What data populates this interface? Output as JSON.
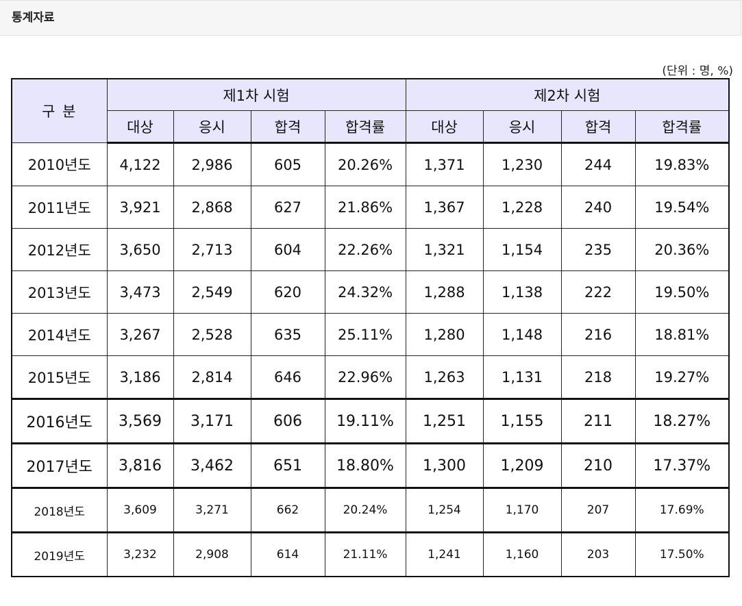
{
  "header": {
    "title": "통계자료"
  },
  "unit_note": "(단위 : 명, %)",
  "table": {
    "corner_label": "구 분",
    "groups": [
      "제1차 시험",
      "제2차 시험"
    ],
    "subheaders": [
      "대상",
      "응시",
      "합격",
      "합격률",
      "대상",
      "응시",
      "합격",
      "합격률"
    ],
    "rows": [
      [
        "2010년도",
        "4,122",
        "2,986",
        "605",
        "20.26%",
        "1,371",
        "1,230",
        "244",
        "19.83%"
      ],
      [
        "2011년도",
        "3,921",
        "2,868",
        "627",
        "21.86%",
        "1,367",
        "1,228",
        "240",
        "19.54%"
      ],
      [
        "2012년도",
        "3,650",
        "2,713",
        "604",
        "22.26%",
        "1,321",
        "1,154",
        "235",
        "20.36%"
      ],
      [
        "2013년도",
        "3,473",
        "2,549",
        "620",
        "24.32%",
        "1,288",
        "1,138",
        "222",
        "19.50%"
      ],
      [
        "2014년도",
        "3,267",
        "2,528",
        "635",
        "25.11%",
        "1,280",
        "1,148",
        "216",
        "18.81%"
      ],
      [
        "2015년도",
        "3,186",
        "2,814",
        "646",
        "22.96%",
        "1,263",
        "1,131",
        "218",
        "19.27%"
      ],
      [
        "2016년도",
        "3,569",
        "3,171",
        "606",
        "19.11%",
        "1,251",
        "1,155",
        "211",
        "18.27%"
      ],
      [
        "2017년도",
        "3,816",
        "3,462",
        "651",
        "18.80%",
        "1,300",
        "1,209",
        "210",
        "17.37%"
      ],
      [
        "2018년도",
        "3,609",
        "3,271",
        "662",
        "20.24%",
        "1,254",
        "1,170",
        "207",
        "17.69%"
      ],
      [
        "2019년도",
        "3,232",
        "2,908",
        "614",
        "21.11%",
        "1,241",
        "1,160",
        "203",
        "17.50%"
      ]
    ]
  }
}
